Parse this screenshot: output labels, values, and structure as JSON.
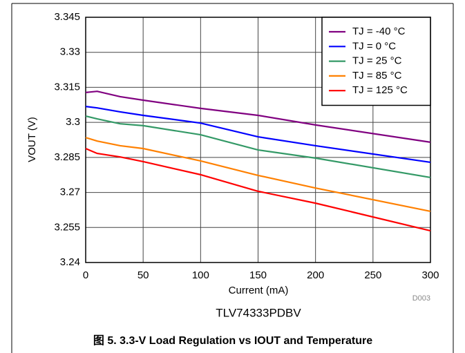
{
  "chart_data": {
    "type": "line",
    "x_label": "Current (mA)",
    "y_label": "VOUT (V)",
    "code": "D003",
    "subtitle": "TLV74333PDBV",
    "caption": "图 5. 3.3-V Load Regulation vs IOUT and Temperature",
    "x": [
      0,
      10,
      30,
      50,
      100,
      150,
      200,
      300
    ],
    "xlim": [
      0,
      300
    ],
    "xticks": [
      0,
      50,
      100,
      150,
      200,
      250,
      300
    ],
    "ylim": [
      3.24,
      3.345
    ],
    "yticks": [
      3.24,
      3.255,
      3.27,
      3.285,
      3.3,
      3.315,
      3.33,
      3.345
    ],
    "grid": true,
    "legend": "upper right",
    "series": [
      {
        "name": "TJ = -40 °C",
        "color": "#800080",
        "values": [
          3.3128,
          3.3133,
          3.311,
          3.3095,
          3.306,
          3.303,
          3.2989,
          3.2915
        ]
      },
      {
        "name": "TJ = 0 °C",
        "color": "#0000ff",
        "values": [
          3.3068,
          3.3062,
          3.3045,
          3.303,
          3.2997,
          3.2938,
          3.29,
          3.2829
        ]
      },
      {
        "name": "TJ = 25 °C",
        "color": "#339966",
        "values": [
          3.3027,
          3.3015,
          3.2994,
          3.2986,
          3.2947,
          3.2882,
          3.2847,
          3.2764
        ]
      },
      {
        "name": "TJ = 85 °C",
        "color": "#ff8000",
        "values": [
          3.2935,
          3.292,
          3.29,
          3.2888,
          3.2835,
          3.2773,
          3.2719,
          3.2619
        ]
      },
      {
        "name": "TJ = 125 °C",
        "color": "#ff0000",
        "values": [
          3.2888,
          3.2867,
          3.2852,
          3.2832,
          3.2776,
          3.2705,
          3.2654,
          3.2536
        ]
      }
    ]
  }
}
